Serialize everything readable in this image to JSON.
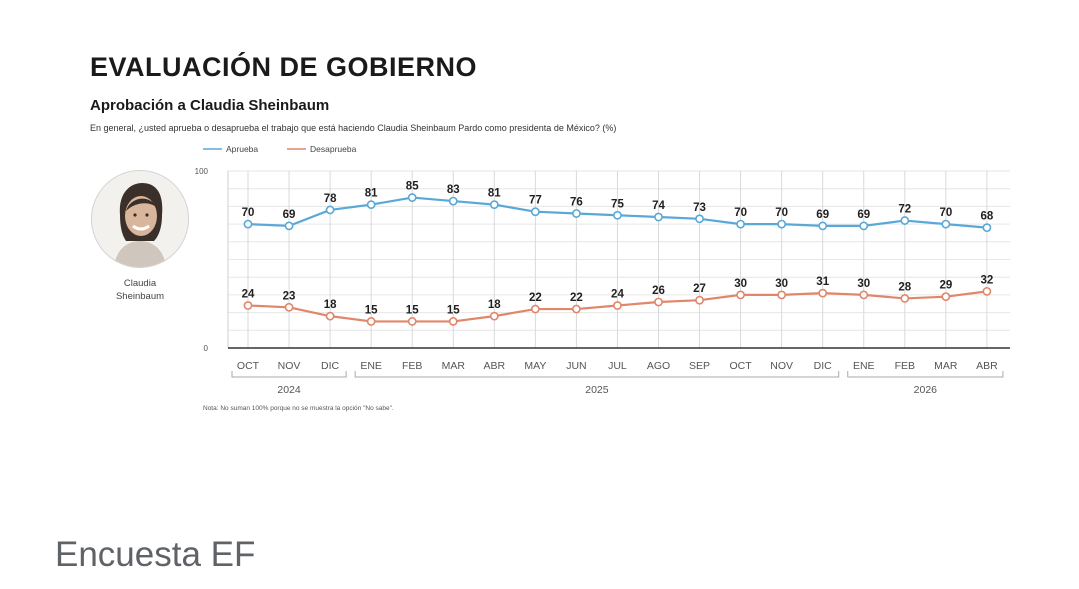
{
  "page": {
    "title": "EVALUACIÓN DE GOBIERNO",
    "person_name_line1": "Claudia",
    "person_name_line2": "Sheinbaum",
    "footer_caption": "Encuesta EF"
  },
  "chart_data": {
    "type": "line",
    "title": "",
    "subtitle": "Aprobación a Claudia Sheinbaum",
    "question": "En general, ¿usted aprueba o desaprueba el trabajo que está haciendo Claudia Sheinbaum Pardo como presidenta de México? (%)",
    "note": "Nota: No suman 100% porque no se muestra la opción \"No sabe\".",
    "xlabel": "",
    "ylabel": "",
    "ylim": [
      0,
      100
    ],
    "yticks": [
      0,
      100
    ],
    "grid": true,
    "legend": "top-left",
    "categories": [
      "OCT",
      "NOV",
      "DIC",
      "ENE",
      "FEB",
      "MAR",
      "ABR",
      "MAY",
      "JUN",
      "JUL",
      "AGO",
      "SEP",
      "OCT",
      "NOV",
      "DIC",
      "ENE",
      "FEB",
      "MAR",
      "ABR"
    ],
    "year_groups": [
      {
        "label": "2024",
        "start": 0,
        "end": 2
      },
      {
        "label": "2025",
        "start": 3,
        "end": 14
      },
      {
        "label": "2026",
        "start": 15,
        "end": 18
      }
    ],
    "series": [
      {
        "name": "Aprueba",
        "color": "#5aa8d8",
        "values": [
          70,
          69,
          78,
          81,
          85,
          83,
          81,
          77,
          76,
          75,
          74,
          73,
          70,
          70,
          69,
          69,
          72,
          70,
          68
        ]
      },
      {
        "name": "Desaprueba",
        "color": "#e0866a",
        "values": [
          24,
          23,
          18,
          15,
          15,
          15,
          18,
          22,
          22,
          24,
          26,
          27,
          30,
          30,
          31,
          30,
          28,
          29,
          32
        ]
      }
    ]
  }
}
